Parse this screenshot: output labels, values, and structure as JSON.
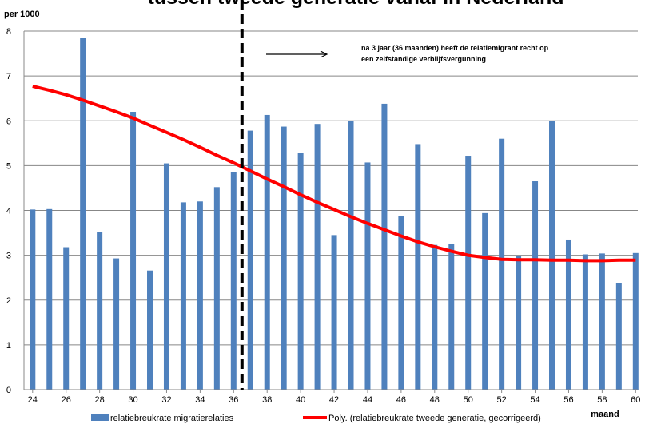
{
  "chart_data": {
    "type": "bar",
    "title": "tussen tweede generatie vanaf in Nederland",
    "ylabel": "per 1000",
    "xlabel": "maand",
    "ylim": [
      0,
      8
    ],
    "yticks": [
      "0",
      "1",
      "2",
      "3",
      "4",
      "5",
      "6",
      "7",
      "8"
    ],
    "xticks": [
      "24",
      "26",
      "28",
      "30",
      "32",
      "34",
      "36",
      "38",
      "40",
      "42",
      "44",
      "46",
      "48",
      "50",
      "52",
      "54",
      "56",
      "58",
      "60"
    ],
    "x": [
      24,
      25,
      26,
      27,
      28,
      29,
      30,
      31,
      32,
      33,
      34,
      35,
      36,
      37,
      38,
      39,
      40,
      41,
      42,
      43,
      44,
      45,
      46,
      47,
      48,
      49,
      50,
      51,
      52,
      53,
      54,
      55,
      56,
      57,
      58,
      59,
      60
    ],
    "series": [
      {
        "name": "relatiebreukrate migratierelaties",
        "type": "bar",
        "color": "#4f81bd",
        "values": [
          4.02,
          4.03,
          3.18,
          7.85,
          3.52,
          2.93,
          6.2,
          2.66,
          5.05,
          4.18,
          4.2,
          4.52,
          4.85,
          5.78,
          6.13,
          5.87,
          5.28,
          5.93,
          3.45,
          6.0,
          5.07,
          6.38,
          3.88,
          5.48,
          3.23,
          3.25,
          5.22,
          3.94,
          5.6,
          2.98,
          4.65,
          6.0,
          3.35,
          3.02,
          3.04,
          2.38,
          3.05
        ]
      },
      {
        "name": "Poly. (relatiebreukrate tweede generatie, gecorrigeerd)",
        "type": "line",
        "color": "#ff0000",
        "values": [
          6.77,
          6.68,
          6.58,
          6.46,
          6.33,
          6.2,
          6.06,
          5.9,
          5.74,
          5.58,
          5.41,
          5.23,
          5.06,
          4.88,
          4.7,
          4.53,
          4.35,
          4.18,
          4.02,
          3.86,
          3.71,
          3.57,
          3.43,
          3.3,
          3.19,
          3.09,
          3.0,
          2.95,
          2.91,
          2.9,
          2.9,
          2.89,
          2.89,
          2.88,
          2.88,
          2.89,
          2.89
        ]
      }
    ],
    "annotations": {
      "divider_at_month": 36.5,
      "note_line1": "na 3 jaar (36 maanden) heeft de relatiemigrant recht op",
      "note_line2": "een zelfstandige verblijfsvergunning"
    },
    "grid": true,
    "legend_position": "bottom"
  }
}
